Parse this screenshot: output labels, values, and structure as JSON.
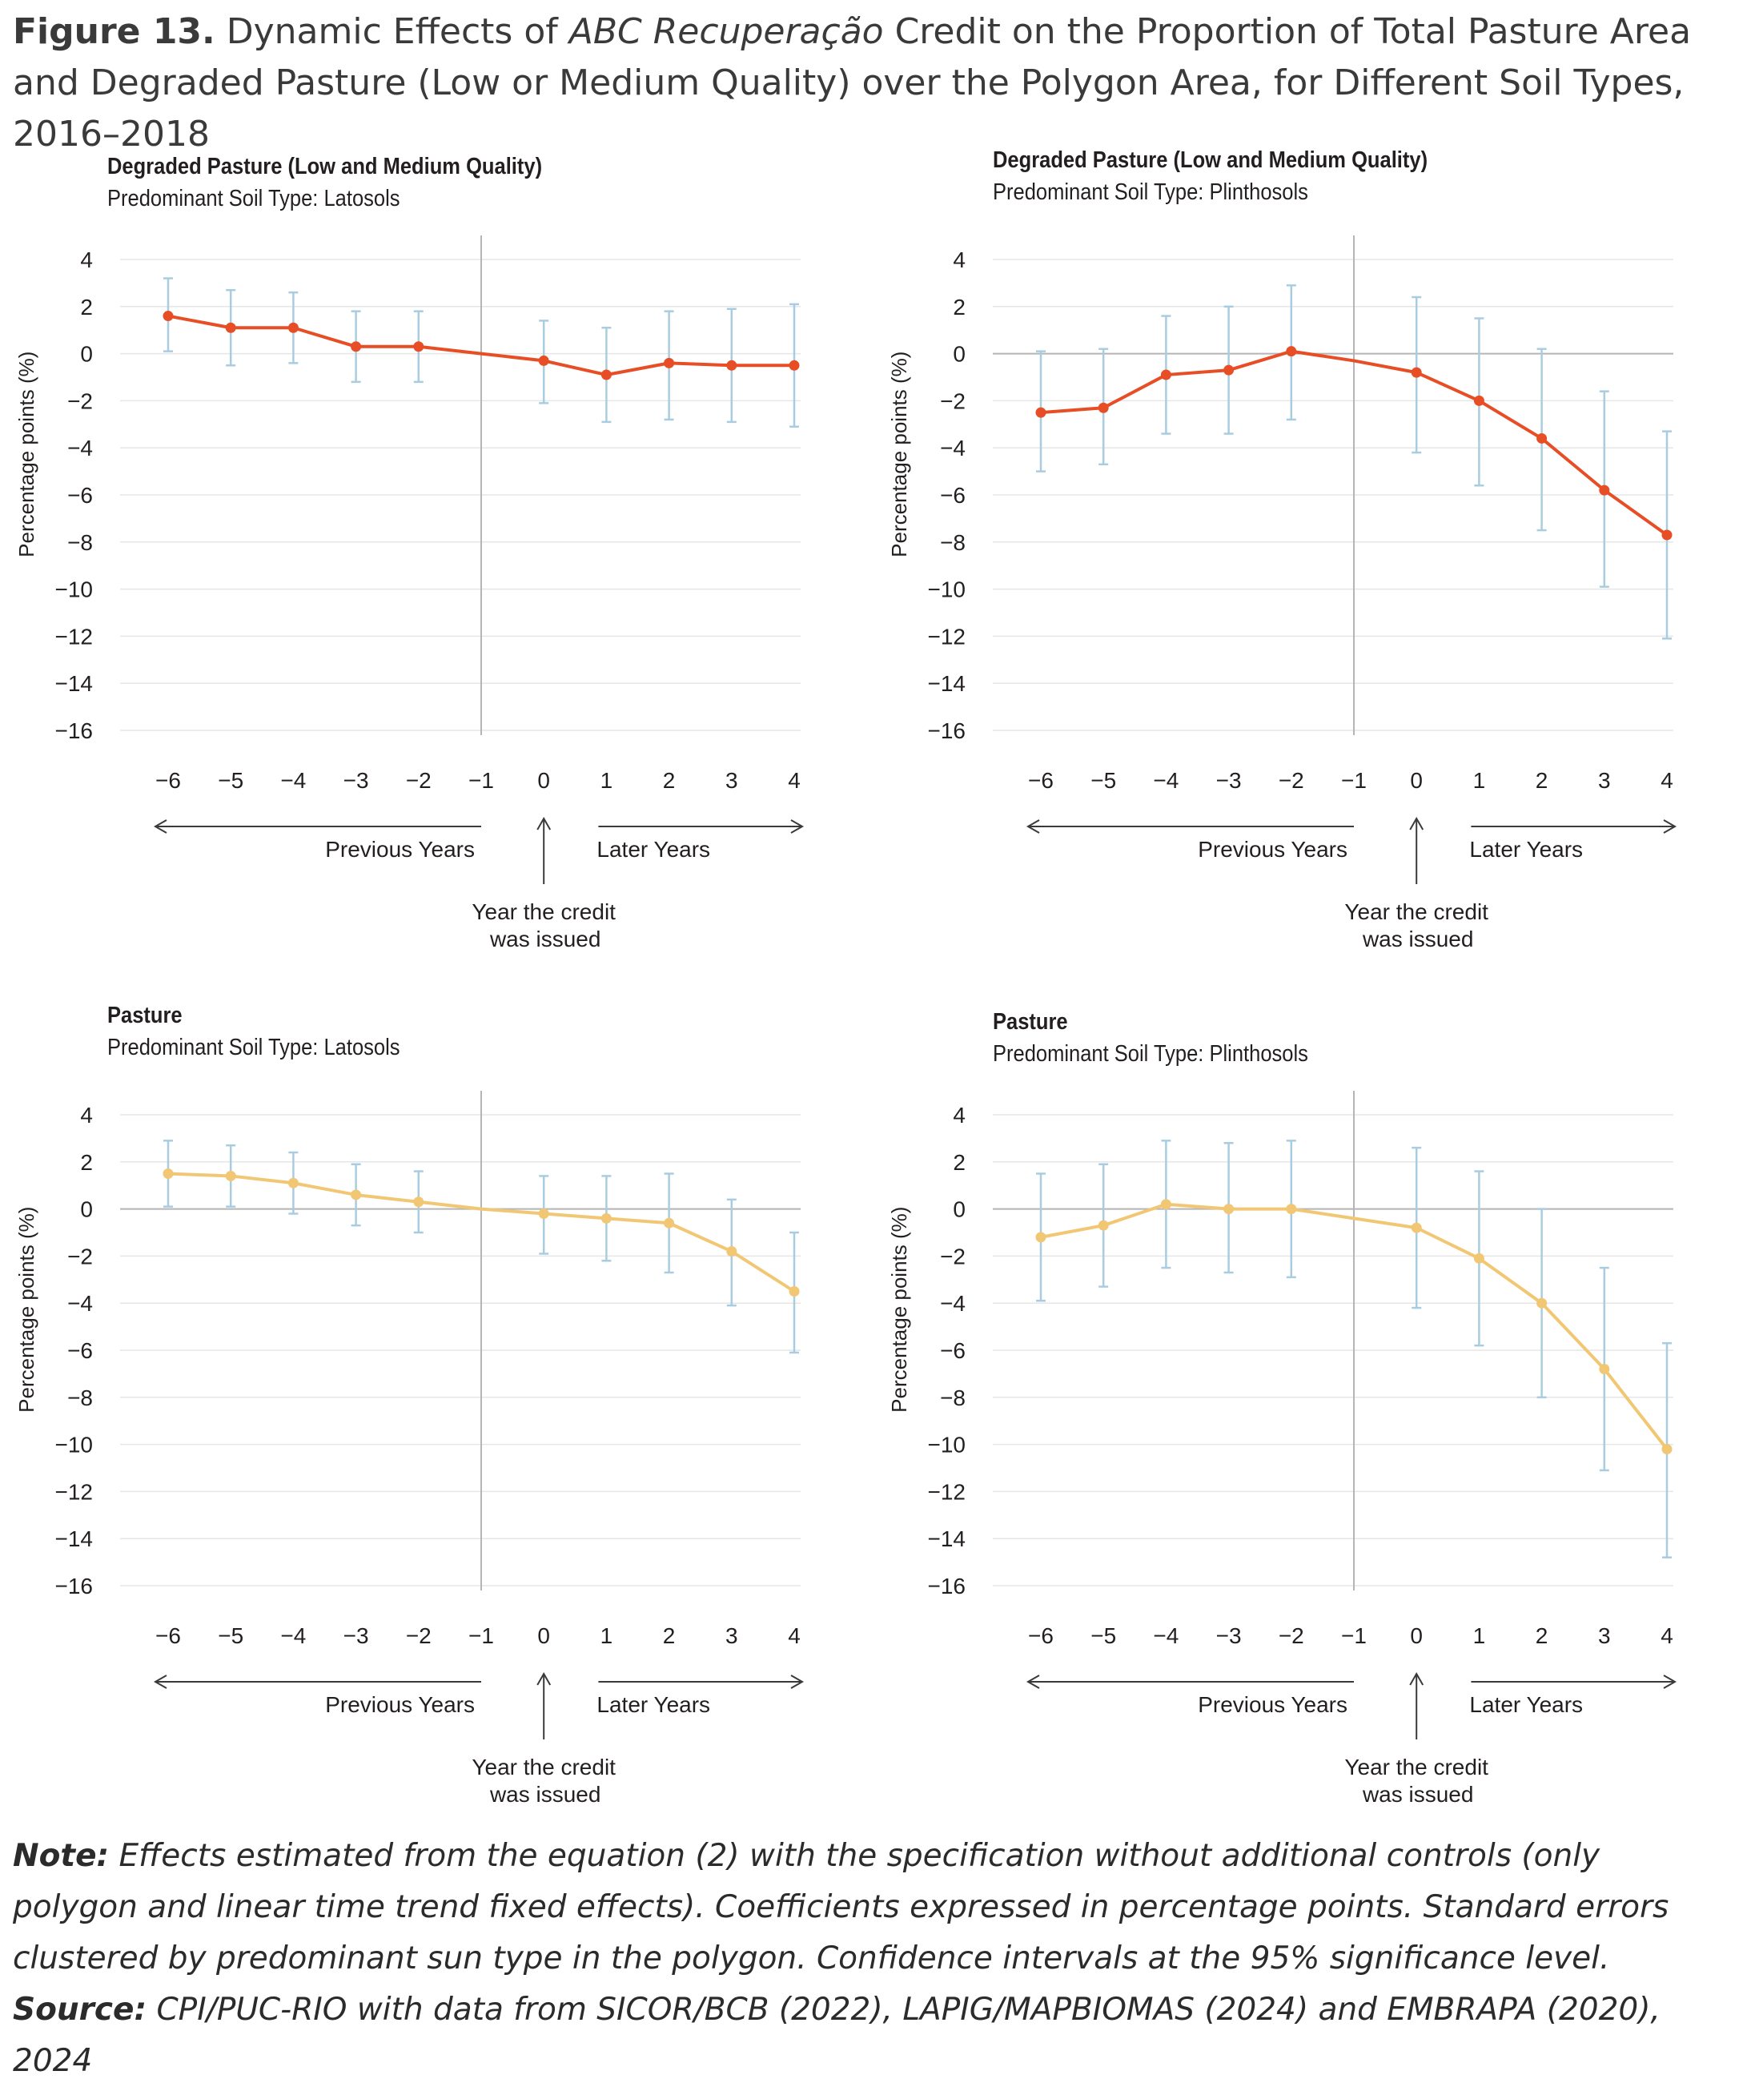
{
  "figure": {
    "title_label": "Figure 13.",
    "title_pre": " Dynamic Effects of ",
    "title_italic": "ABC Recuperação",
    "title_post": " Credit on the Proportion of Total Pasture Area and Degraded Pasture (Low or Medium Quality) over the Polygon Area, for Different Soil Types, 2016–2018"
  },
  "annotations": {
    "previous_years": "Previous Years",
    "later_years": "Later Years",
    "credit_line1": "Year the credit",
    "credit_line2": "was issued"
  },
  "colors": {
    "degraded": "#e84e26",
    "pasture": "#f1c774",
    "error_bar": "#a9cde0",
    "axis_line": "#b5b5b5",
    "grid": "#e6e6e6"
  },
  "chart_data": [
    {
      "type": "line",
      "title": "Degraded Pasture (Low and Medium Quality)",
      "subtitle": "Predominant Soil Type: Latosols",
      "ylabel": "Percentage points (%)",
      "ylim": [
        -16,
        4
      ],
      "yticks": [
        "4",
        "2",
        "0",
        "−2",
        "−4",
        "−6",
        "−8",
        "−10",
        "−12",
        "−14",
        "−16"
      ],
      "x": [
        "−6",
        "−5",
        "−4",
        "−3",
        "−2",
        "−1",
        "0",
        "1",
        "2",
        "3",
        "4"
      ],
      "series": [
        {
          "values": [
            1.6,
            1.1,
            1.1,
            0.3,
            0.3,
            0,
            -0.3,
            -0.9,
            -0.4,
            -0.5,
            -0.5
          ],
          "ci_low": [
            0.1,
            -0.5,
            -0.4,
            -1.2,
            -1.2,
            null,
            -2.1,
            -2.9,
            -2.8,
            -2.9,
            -3.1
          ],
          "ci_high": [
            3.2,
            2.7,
            2.6,
            1.8,
            1.8,
            null,
            1.4,
            1.1,
            1.8,
            1.9,
            2.1
          ]
        }
      ],
      "color": "degraded",
      "zero_line": false
    },
    {
      "type": "line",
      "title": "Degraded Pasture (Low and Medium Quality)",
      "subtitle": "Predominant Soil Type: Plinthosols",
      "ylabel": "Percentage points (%)",
      "ylim": [
        -16,
        4
      ],
      "yticks": [
        "4",
        "2",
        "0",
        "−2",
        "−4",
        "−6",
        "−8",
        "−10",
        "−12",
        "−14",
        "−16"
      ],
      "x": [
        "−6",
        "−5",
        "−4",
        "−3",
        "−2",
        "−1",
        "0",
        "1",
        "2",
        "3",
        "4"
      ],
      "series": [
        {
          "values": [
            -2.5,
            -2.3,
            -0.9,
            -0.7,
            0.1,
            -0.3,
            -0.8,
            -2.0,
            -3.6,
            -5.8,
            -7.7
          ],
          "ci_low": [
            -5.0,
            -4.7,
            -3.4,
            -3.4,
            -2.8,
            null,
            -4.2,
            -5.6,
            -7.5,
            -9.9,
            -12.1
          ],
          "ci_high": [
            0.1,
            0.2,
            1.6,
            2.0,
            2.9,
            null,
            2.4,
            1.5,
            0.2,
            -1.6,
            -3.3
          ]
        }
      ],
      "color": "degraded",
      "zero_line": true
    },
    {
      "type": "line",
      "title": "Pasture",
      "subtitle": "Predominant Soil Type: Latosols",
      "ylabel": "Percentage points (%)",
      "ylim": [
        -16,
        4
      ],
      "yticks": [
        "4",
        "2",
        "0",
        "−2",
        "−4",
        "−6",
        "−8",
        "−10",
        "−12",
        "−14",
        "−16"
      ],
      "x": [
        "−6",
        "−5",
        "−4",
        "−3",
        "−2",
        "−1",
        "0",
        "1",
        "2",
        "3",
        "4"
      ],
      "series": [
        {
          "values": [
            1.5,
            1.4,
            1.1,
            0.6,
            0.3,
            0,
            -0.2,
            -0.4,
            -0.6,
            -1.8,
            -3.5
          ],
          "ci_low": [
            0.1,
            0.1,
            -0.2,
            -0.7,
            -1.0,
            null,
            -1.9,
            -2.2,
            -2.7,
            -4.1,
            -6.1
          ],
          "ci_high": [
            2.9,
            2.7,
            2.4,
            1.9,
            1.6,
            null,
            1.4,
            1.4,
            1.5,
            0.4,
            -1.0
          ]
        }
      ],
      "color": "pasture",
      "zero_line": true
    },
    {
      "type": "line",
      "title": "Pasture",
      "subtitle": "Predominant Soil Type: Plinthosols",
      "ylabel": "Percentage points (%)",
      "ylim": [
        -16,
        4
      ],
      "yticks": [
        "4",
        "2",
        "0",
        "−2",
        "−4",
        "−6",
        "−8",
        "−10",
        "−12",
        "−14",
        "−16"
      ],
      "x": [
        "−6",
        "−5",
        "−4",
        "−3",
        "−2",
        "−1",
        "0",
        "1",
        "2",
        "3",
        "4"
      ],
      "series": [
        {
          "values": [
            -1.2,
            -0.7,
            0.2,
            0.0,
            0.0,
            -0.4,
            -0.8,
            -2.1,
            -4.0,
            -6.8,
            -10.2
          ],
          "ci_low": [
            -3.9,
            -3.3,
            -2.5,
            -2.7,
            -2.9,
            null,
            -4.2,
            -5.8,
            -8.0,
            -11.1,
            -14.8
          ],
          "ci_high": [
            1.5,
            1.9,
            2.9,
            2.8,
            2.9,
            null,
            2.6,
            1.6,
            0.0,
            -2.5,
            -5.7
          ]
        }
      ],
      "color": "pasture",
      "zero_line": true
    }
  ],
  "notes": {
    "note_label": "Note:",
    "note_text": " Effects estimated from the equation (2) with the specification without additional controls (only polygon and linear time trend fixed effects). Coefficients expressed in percentage points. Standard errors clustered by predominant sun type in the polygon. Confidence intervals at the 95% significance level.",
    "source_label": "Source:",
    "source_text": " CPI/PUC-RIO with data from SICOR/BCB (2022), LAPIG/MAPBIOMAS (2024) and EMBRAPA (2020), 2024"
  }
}
